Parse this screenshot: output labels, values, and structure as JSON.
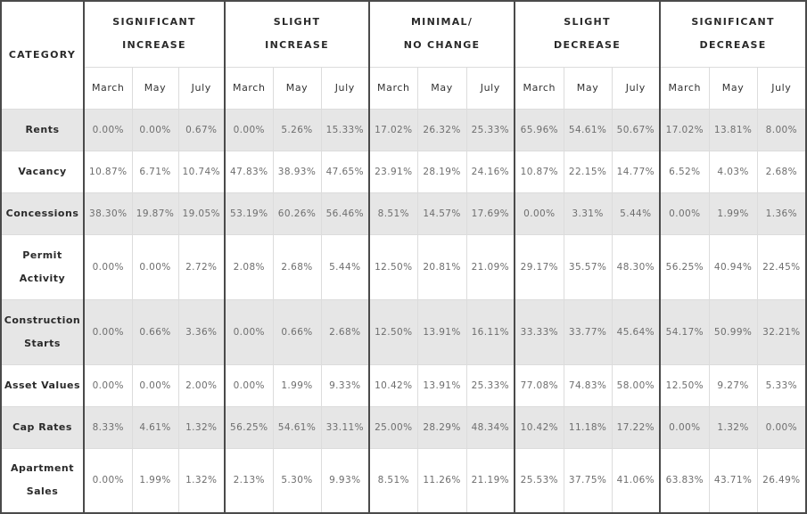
{
  "table": {
    "category_header": "CATEGORY",
    "groups": [
      {
        "line1": "SIGNIFICANT",
        "line2": "INCREASE"
      },
      {
        "line1": "SLIGHT",
        "line2": "INCREASE"
      },
      {
        "line1": "MINIMAL/",
        "line2": "NO CHANGE"
      },
      {
        "line1": "SLIGHT",
        "line2": "DECREASE"
      },
      {
        "line1": "SIGNIFICANT",
        "line2": "DECREASE"
      }
    ],
    "months": [
      "March",
      "May",
      "July"
    ],
    "rows": [
      {
        "label": "Rents",
        "values": [
          "0.00%",
          "0.00%",
          "0.67%",
          "0.00%",
          "5.26%",
          "15.33%",
          "17.02%",
          "26.32%",
          "25.33%",
          "65.96%",
          "54.61%",
          "50.67%",
          "17.02%",
          "13.81%",
          "8.00%"
        ]
      },
      {
        "label": "Vacancy",
        "values": [
          "10.87%",
          "6.71%",
          "10.74%",
          "47.83%",
          "38.93%",
          "47.65%",
          "23.91%",
          "28.19%",
          "24.16%",
          "10.87%",
          "22.15%",
          "14.77%",
          "6.52%",
          "4.03%",
          "2.68%"
        ]
      },
      {
        "label": "Concessions",
        "values": [
          "38.30%",
          "19.87%",
          "19.05%",
          "53.19%",
          "60.26%",
          "56.46%",
          "8.51%",
          "14.57%",
          "17.69%",
          "0.00%",
          "3.31%",
          "5.44%",
          "0.00%",
          "1.99%",
          "1.36%"
        ]
      },
      {
        "label": "Permit Activity",
        "values": [
          "0.00%",
          "0.00%",
          "2.72%",
          "2.08%",
          "2.68%",
          "5.44%",
          "12.50%",
          "20.81%",
          "21.09%",
          "29.17%",
          "35.57%",
          "48.30%",
          "56.25%",
          "40.94%",
          "22.45%"
        ]
      },
      {
        "label": "Construction Starts",
        "values": [
          "0.00%",
          "0.66%",
          "3.36%",
          "0.00%",
          "0.66%",
          "2.68%",
          "12.50%",
          "13.91%",
          "16.11%",
          "33.33%",
          "33.77%",
          "45.64%",
          "54.17%",
          "50.99%",
          "32.21%"
        ]
      },
      {
        "label": "Asset Values",
        "values": [
          "0.00%",
          "0.00%",
          "2.00%",
          "0.00%",
          "1.99%",
          "9.33%",
          "10.42%",
          "13.91%",
          "25.33%",
          "77.08%",
          "74.83%",
          "58.00%",
          "12.50%",
          "9.27%",
          "5.33%"
        ]
      },
      {
        "label": "Cap Rates",
        "values": [
          "8.33%",
          "4.61%",
          "1.32%",
          "56.25%",
          "54.61%",
          "33.11%",
          "25.00%",
          "28.29%",
          "48.34%",
          "10.42%",
          "11.18%",
          "17.22%",
          "0.00%",
          "1.32%",
          "0.00%"
        ]
      },
      {
        "label": "Apartment Sales",
        "values": [
          "0.00%",
          "1.99%",
          "1.32%",
          "2.13%",
          "5.30%",
          "9.93%",
          "8.51%",
          "11.26%",
          "21.19%",
          "25.53%",
          "37.75%",
          "41.06%",
          "63.83%",
          "43.71%",
          "26.49%"
        ]
      }
    ]
  },
  "colors": {
    "shaded_row": "#e6e6e6",
    "group_border": "#4a4a4a",
    "cell_text": "#6e6e6e",
    "header_text": "#2a2a2a"
  }
}
